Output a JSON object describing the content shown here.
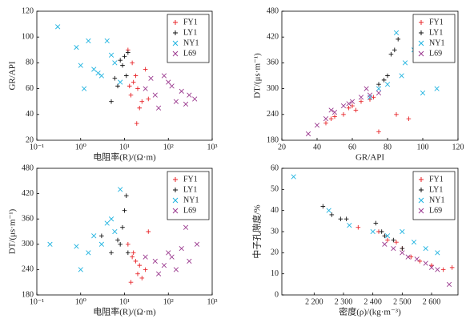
{
  "chart_data": [
    {
      "type": "scatter",
      "xlabel": "电阻率(R)/(Ω·m)",
      "ylabel": "GR/API",
      "xlog": true,
      "xlim": [
        0.1,
        1000
      ],
      "xticks": [
        {
          "value": 0.1,
          "label": "10⁻¹"
        },
        {
          "value": 1,
          "label": "10⁰"
        },
        {
          "value": 10,
          "label": "10¹"
        },
        {
          "value": 100,
          "label": "10²"
        },
        {
          "value": 1000,
          "label": "10³"
        }
      ],
      "ylim": [
        20,
        120
      ],
      "yticks": [
        20,
        40,
        60,
        80,
        100,
        120
      ],
      "legend": "upper right",
      "series": [
        {
          "name": "FY1",
          "color": "#e8262a",
          "marker": "+",
          "x": [
            12,
            15,
            18,
            20,
            14,
            25,
            30,
            16,
            22,
            13,
            35,
            19
          ],
          "y": [
            90,
            80,
            70,
            60,
            55,
            50,
            75,
            65,
            45,
            62,
            52,
            33
          ]
        },
        {
          "name": "LY1",
          "color": "#111111",
          "marker": "+",
          "x": [
            5,
            7,
            8,
            10,
            9,
            11,
            12,
            6
          ],
          "y": [
            50,
            62,
            82,
            85,
            78,
            70,
            88,
            68
          ]
        },
        {
          "name": "NY1",
          "color": "#1fb3e0",
          "marker": "x",
          "x": [
            0.3,
            0.8,
            1,
            1.5,
            2,
            3,
            4,
            5,
            6,
            1.2,
            2.5,
            8
          ],
          "y": [
            108,
            92,
            78,
            97,
            75,
            70,
            97,
            86,
            80,
            60,
            72,
            65
          ]
        },
        {
          "name": "L69",
          "color": "#9b3a8f",
          "marker": "x",
          "x": [
            30,
            50,
            80,
            100,
            150,
            200,
            300,
            400,
            60,
            120,
            250,
            40
          ],
          "y": [
            60,
            55,
            70,
            65,
            50,
            58,
            55,
            52,
            45,
            62,
            48,
            68
          ]
        }
      ]
    },
    {
      "type": "scatter",
      "xlabel": "GR/API",
      "ylabel": "DT/(μs·m⁻¹)",
      "xlog": false,
      "xlim": [
        20,
        120
      ],
      "xticks": [
        20,
        40,
        60,
        80,
        100,
        120
      ],
      "ylim": [
        180,
        480
      ],
      "yticks": [
        180,
        240,
        300,
        360,
        420,
        480
      ],
      "legend": "upper right",
      "series": [
        {
          "name": "FY1",
          "color": "#e8262a",
          "marker": "+",
          "x": [
            45,
            50,
            55,
            60,
            62,
            65,
            70,
            75,
            48,
            58,
            72,
            85,
            92
          ],
          "y": [
            220,
            235,
            240,
            260,
            250,
            270,
            275,
            200,
            230,
            255,
            280,
            240,
            230
          ]
        },
        {
          "name": "LY1",
          "color": "#111111",
          "marker": "+",
          "x": [
            78,
            80,
            82,
            84,
            86,
            75
          ],
          "y": [
            320,
            330,
            380,
            390,
            415,
            310
          ]
        },
        {
          "name": "NY1",
          "color": "#1fb3e0",
          "marker": "x",
          "x": [
            75,
            80,
            85,
            90,
            95,
            100,
            108,
            70,
            88
          ],
          "y": [
            300,
            310,
            430,
            360,
            390,
            290,
            300,
            280,
            330
          ]
        },
        {
          "name": "L69",
          "color": "#9b3a8f",
          "marker": "x",
          "x": [
            35,
            40,
            45,
            50,
            55,
            60,
            65,
            70,
            75,
            48,
            58,
            68
          ],
          "y": [
            195,
            215,
            230,
            245,
            260,
            270,
            280,
            285,
            290,
            250,
            265,
            300
          ]
        }
      ]
    },
    {
      "type": "scatter",
      "xlabel": "电阻率(R)/(Ω·m)",
      "ylabel": "DT/(μs·m⁻¹)",
      "xlog": true,
      "xlim": [
        0.1,
        1000
      ],
      "xticks": [
        {
          "value": 0.1,
          "label": "10⁻¹"
        },
        {
          "value": 1,
          "label": "10⁰"
        },
        {
          "value": 10,
          "label": "10¹"
        },
        {
          "value": 100,
          "label": "10²"
        },
        {
          "value": 1000,
          "label": "10³"
        }
      ],
      "ylim": [
        180,
        480
      ],
      "yticks": [
        180,
        240,
        300,
        360,
        420,
        480
      ],
      "legend": "upper right",
      "series": [
        {
          "name": "FY1",
          "color": "#e8262a",
          "marker": "+",
          "x": [
            12,
            15,
            18,
            20,
            25,
            30,
            14,
            22,
            35,
            16
          ],
          "y": [
            300,
            270,
            260,
            230,
            220,
            240,
            210,
            250,
            330,
            280
          ]
        },
        {
          "name": "LY1",
          "color": "#111111",
          "marker": "+",
          "x": [
            3,
            5,
            7,
            9,
            10,
            11,
            12,
            8
          ],
          "y": [
            320,
            280,
            310,
            340,
            380,
            415,
            280,
            300
          ]
        },
        {
          "name": "NY1",
          "color": "#1fb3e0",
          "marker": "x",
          "x": [
            0.2,
            0.8,
            1,
            1.5,
            2,
            3,
            4,
            6,
            8,
            5
          ],
          "y": [
            300,
            295,
            240,
            280,
            320,
            300,
            350,
            330,
            430,
            360
          ]
        },
        {
          "name": "L69",
          "color": "#9b3a8f",
          "marker": "x",
          "x": [
            30,
            50,
            80,
            100,
            150,
            200,
            300,
            450,
            60,
            120,
            250
          ],
          "y": [
            270,
            260,
            250,
            280,
            240,
            290,
            260,
            300,
            230,
            270,
            340
          ]
        }
      ]
    },
    {
      "type": "scatter",
      "xlabel": "密度(ρ)/(kg·m⁻³)",
      "ylabel": "中子孔隙度/%",
      "xlog": false,
      "xlim": [
        2090,
        2690
      ],
      "xticks": [
        {
          "value": 2200,
          "label": "2 200"
        },
        {
          "value": 2300,
          "label": "2 300"
        },
        {
          "value": 2400,
          "label": "2 400"
        },
        {
          "value": 2500,
          "label": "2 500"
        },
        {
          "value": 2600,
          "label": "2 600"
        }
      ],
      "ylim": [
        0,
        60
      ],
      "yticks": [
        0,
        10,
        20,
        30,
        40,
        50,
        60
      ],
      "legend": "upper right",
      "series": [
        {
          "name": "FY1",
          "color": "#e8262a",
          "marker": "+",
          "x": [
            2350,
            2420,
            2450,
            2480,
            2500,
            2530,
            2560,
            2600,
            2640,
            2670
          ],
          "y": [
            32,
            30,
            26,
            25,
            22,
            18,
            16,
            14,
            12,
            13
          ]
        },
        {
          "name": "LY1",
          "color": "#111111",
          "marker": "+",
          "x": [
            2230,
            2260,
            2290,
            2310,
            2410,
            2430,
            2440,
            2470,
            2500
          ],
          "y": [
            42,
            38,
            36,
            36,
            34,
            30,
            28,
            26,
            22
          ]
        },
        {
          "name": "NY1",
          "color": "#1fb3e0",
          "marker": "x",
          "x": [
            2130,
            2250,
            2320,
            2400,
            2450,
            2500,
            2540,
            2580,
            2620
          ],
          "y": [
            56,
            40,
            33,
            30,
            28,
            30,
            25,
            22,
            20
          ]
        },
        {
          "name": "L69",
          "color": "#9b3a8f",
          "marker": "x",
          "x": [
            2440,
            2470,
            2500,
            2520,
            2550,
            2580,
            2600,
            2620,
            2660
          ],
          "y": [
            24,
            22,
            20,
            18,
            17,
            15,
            13,
            12,
            5
          ]
        }
      ]
    }
  ]
}
